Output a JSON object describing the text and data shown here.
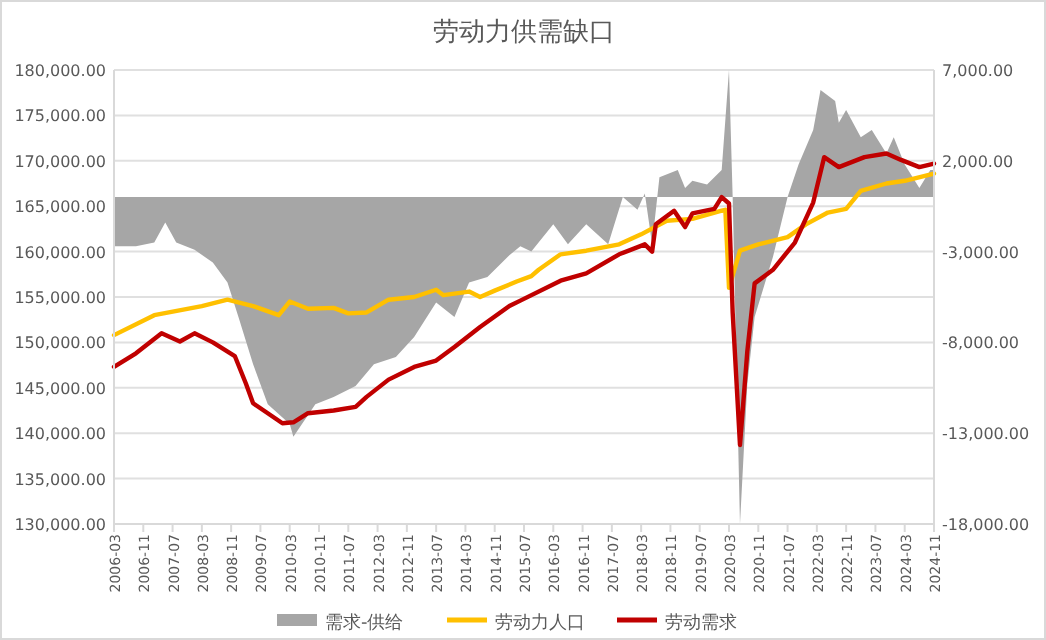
{
  "chart_data": {
    "type": "line",
    "title": "劳动力供需缺口",
    "xlim": [
      "2006-03",
      "2024-11"
    ],
    "xticks": [
      "2006-03",
      "2006-11",
      "2007-07",
      "2008-03",
      "2008-11",
      "2009-07",
      "2010-03",
      "2010-11",
      "2011-07",
      "2012-03",
      "2012-11",
      "2013-07",
      "2014-03",
      "2014-11",
      "2015-07",
      "2016-03",
      "2016-11",
      "2017-07",
      "2018-03",
      "2018-11",
      "2019-07",
      "2020-03",
      "2020-11",
      "2021-07",
      "2022-03",
      "2022-11",
      "2023-07",
      "2024-03",
      "2024-11"
    ],
    "ylim": [
      130000,
      180000
    ],
    "yticks": [
      {
        "value": 130000,
        "label": "130,000.00"
      },
      {
        "value": 135000,
        "label": "135,000.00"
      },
      {
        "value": 140000,
        "label": "140,000.00"
      },
      {
        "value": 145000,
        "label": "145,000.00"
      },
      {
        "value": 150000,
        "label": "150,000.00"
      },
      {
        "value": 155000,
        "label": "155,000.00"
      },
      {
        "value": 160000,
        "label": "160,000.00"
      },
      {
        "value": 165000,
        "label": "165,000.00"
      },
      {
        "value": 170000,
        "label": "170,000.00"
      },
      {
        "value": 175000,
        "label": "175,000.00"
      },
      {
        "value": 180000,
        "label": "180,000.00"
      }
    ],
    "y2lim": [
      -18000,
      7000
    ],
    "y2ticks": [
      {
        "value": -18000,
        "label": "-18,000.00"
      },
      {
        "value": -13000,
        "label": "-13,000.00"
      },
      {
        "value": -8000,
        "label": "-8,000.00"
      },
      {
        "value": -3000,
        "label": "-3,000.00"
      },
      {
        "value": 2000,
        "label": "2,000.00"
      },
      {
        "value": 7000,
        "label": "7,000.00"
      }
    ],
    "grid": "y",
    "legend": "bottom",
    "series": [
      {
        "name": "需求-供给",
        "type": "area",
        "axis": "y2",
        "color": "#a6a6a6",
        "x": [
          "2006-03",
          "2006-09",
          "2007-02",
          "2007-05",
          "2007-08",
          "2008-01",
          "2008-06",
          "2008-10",
          "2009-01",
          "2009-05",
          "2009-09",
          "2010-03",
          "2010-04",
          "2010-10",
          "2011-03",
          "2011-09",
          "2012-02",
          "2012-08",
          "2013-01",
          "2013-07",
          "2013-12",
          "2014-04",
          "2014-09",
          "2015-03",
          "2015-06",
          "2015-09",
          "2016-03",
          "2016-07",
          "2016-12",
          "2017-06",
          "2017-10",
          "2018-02",
          "2018-04",
          "2018-06",
          "2018-08",
          "2019-01",
          "2019-03",
          "2019-05",
          "2019-09",
          "2020-01",
          "2020-03",
          "2020-04",
          "2020-06",
          "2020-08",
          "2020-10",
          "2021-03",
          "2021-07",
          "2021-10",
          "2022-02",
          "2022-04",
          "2022-08",
          "2022-09",
          "2022-11",
          "2023-03",
          "2023-06",
          "2023-10",
          "2023-12",
          "2024-03",
          "2024-07",
          "2024-10",
          "2024-11"
        ],
        "values": [
          -2700,
          -2700,
          -2500,
          -1400,
          -2500,
          -2900,
          -3600,
          -4700,
          -6600,
          -9200,
          -11400,
          -12500,
          -13200,
          -11400,
          -11000,
          -10400,
          -9200,
          -8800,
          -7700,
          -5800,
          -6600,
          -4700,
          -4400,
          -3200,
          -2700,
          -3000,
          -1500,
          -2600,
          -1500,
          -2600,
          0,
          -700,
          200,
          -2600,
          1100,
          1500,
          500,
          900,
          700,
          1500,
          7000,
          0,
          -18000,
          -10300,
          -6600,
          -3300,
          0,
          1800,
          3700,
          5900,
          5300,
          4100,
          4800,
          3300,
          3700,
          2400,
          3300,
          1800,
          500,
          1500,
          1500
        ]
      },
      {
        "name": "劳动力人口",
        "color": "#ffc000",
        "x": [
          "2006-03",
          "2007-02",
          "2008-03",
          "2008-10",
          "2009-05",
          "2009-12",
          "2010-03",
          "2010-08",
          "2011-03",
          "2011-07",
          "2011-12",
          "2012-06",
          "2013-01",
          "2013-07",
          "2013-09",
          "2014-04",
          "2014-07",
          "2014-11",
          "2015-05",
          "2015-09",
          "2015-11",
          "2016-05",
          "2016-12",
          "2017-09",
          "2018-03",
          "2018-10",
          "2019-05",
          "2020-01",
          "2020-02",
          "2020-03",
          "2020-06",
          "2020-11",
          "2021-07",
          "2021-12",
          "2022-06",
          "2022-11",
          "2023-03",
          "2023-10",
          "2024-03",
          "2024-11"
        ],
        "values": [
          150800,
          153000,
          154000,
          154700,
          154000,
          153000,
          154500,
          153700,
          153800,
          153200,
          153300,
          154700,
          155000,
          155800,
          155200,
          155600,
          155000,
          155700,
          156700,
          157300,
          158000,
          159700,
          160100,
          160800,
          161900,
          163400,
          163600,
          164500,
          164600,
          156000,
          160100,
          160800,
          161600,
          163000,
          164300,
          164700,
          166700,
          167500,
          167800,
          168600
        ]
      },
      {
        "name": "劳动需求",
        "color": "#c00000",
        "x": [
          "2006-03",
          "2006-09",
          "2007-04",
          "2007-09",
          "2008-01",
          "2008-06",
          "2008-12",
          "2009-03",
          "2009-05",
          "2009-09",
          "2010-01",
          "2010-04",
          "2010-08",
          "2011-03",
          "2011-09",
          "2011-12",
          "2012-06",
          "2013-01",
          "2013-07",
          "2013-12",
          "2014-07",
          "2015-03",
          "2015-06",
          "2016-05",
          "2016-12",
          "2017-09",
          "2018-04",
          "2018-06",
          "2018-07",
          "2018-12",
          "2019-03",
          "2019-05",
          "2019-11",
          "2020-01",
          "2020-03",
          "2020-04",
          "2020-06",
          "2020-08",
          "2020-10",
          "2021-03",
          "2021-09",
          "2022-02",
          "2022-05",
          "2022-09",
          "2023-04",
          "2023-10",
          "2024-02",
          "2024-07",
          "2024-11"
        ],
        "values": [
          147300,
          148800,
          151000,
          150100,
          151000,
          150000,
          148500,
          145500,
          143300,
          142200,
          141100,
          141200,
          142200,
          142500,
          142900,
          144000,
          145900,
          147300,
          148000,
          149500,
          151700,
          154000,
          154600,
          156800,
          157600,
          159700,
          160800,
          160000,
          163000,
          164500,
          162700,
          164200,
          164700,
          166000,
          165300,
          153300,
          138700,
          149000,
          156500,
          158000,
          161000,
          165400,
          170400,
          169300,
          170400,
          170800,
          170100,
          169300,
          169700
        ]
      }
    ]
  }
}
